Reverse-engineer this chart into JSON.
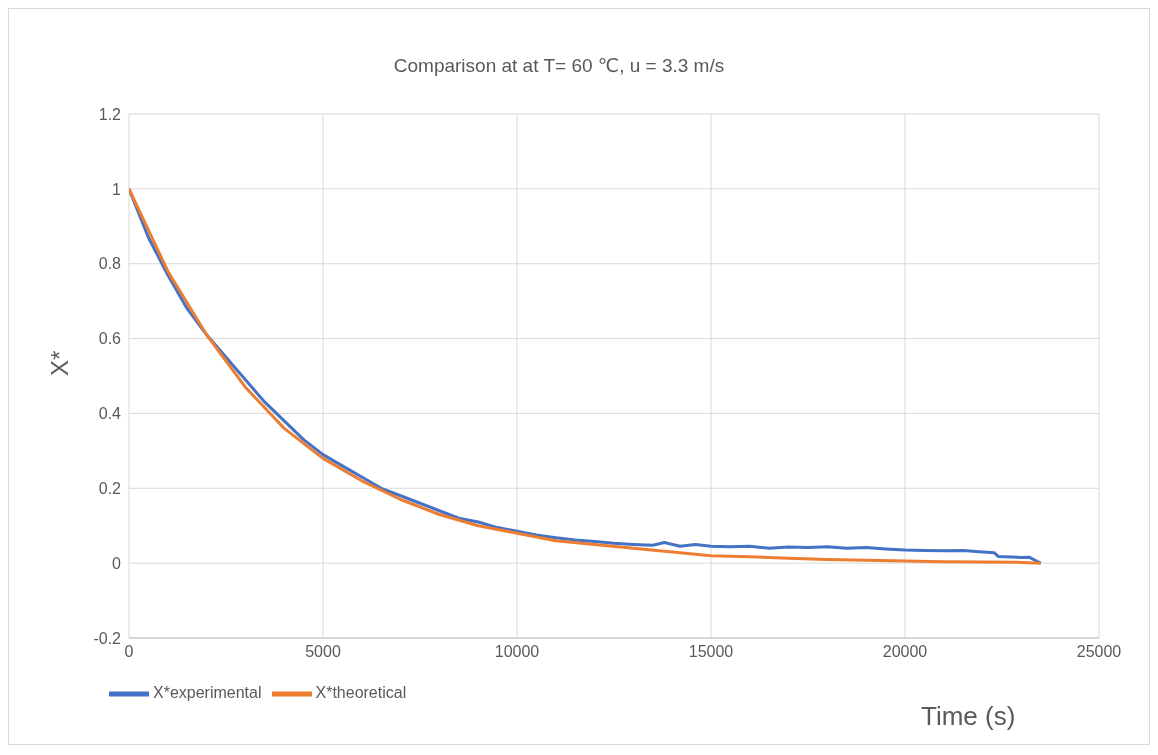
{
  "chart_data": {
    "type": "line",
    "title": "Comparison at at T= 60 ℃, u = 3.3 m/s",
    "xlabel": "Time (s)",
    "ylabel": "X*",
    "xlim": [
      0,
      25000
    ],
    "xticks": [
      0,
      5000,
      10000,
      15000,
      20000,
      25000
    ],
    "ylim": [
      -0.2,
      1.2
    ],
    "yticks": [
      -0.2,
      0,
      0.2,
      0.4,
      0.6,
      0.8,
      1,
      1.2
    ],
    "grid": true,
    "legend": "bottom",
    "marker": "none",
    "line_style": "solid",
    "series": [
      {
        "name": "X*experimental",
        "color": "#4472c4",
        "x": [
          0,
          500,
          1000,
          1500,
          2000,
          2500,
          3000,
          3500,
          4000,
          4500,
          5000,
          5500,
          6000,
          6500,
          7000,
          7500,
          8000,
          8500,
          9000,
          9500,
          10000,
          10500,
          11000,
          11500,
          12000,
          12500,
          13000,
          13500,
          13800,
          14200,
          14600,
          15000,
          15500,
          16000,
          16500,
          17000,
          17500,
          18000,
          18500,
          19000,
          19500,
          20000,
          20500,
          21000,
          21500,
          22000,
          22300,
          22400,
          23000,
          23200,
          23400,
          23500
        ],
        "values": [
          1,
          0.87,
          0.77,
          0.68,
          0.61,
          0.55,
          0.49,
          0.43,
          0.38,
          0.33,
          0.29,
          0.26,
          0.23,
          0.2,
          0.18,
          0.16,
          0.14,
          0.12,
          0.11,
          0.095,
          0.085,
          0.075,
          0.068,
          0.062,
          0.058,
          0.053,
          0.05,
          0.048,
          0.055,
          0.045,
          0.05,
          0.045,
          0.044,
          0.045,
          0.04,
          0.043,
          0.042,
          0.044,
          0.04,
          0.042,
          0.038,
          0.035,
          0.034,
          0.033,
          0.034,
          0.03,
          0.028,
          0.018,
          0.015,
          0.016,
          0.005,
          0
        ]
      },
      {
        "name": "X*theoretical",
        "color": "#ed7d31",
        "x": [
          0,
          1000,
          2000,
          3000,
          4000,
          5000,
          6000,
          7000,
          8000,
          9000,
          10000,
          11000,
          12000,
          13000,
          14000,
          15000,
          16000,
          17000,
          18000,
          19000,
          20000,
          21000,
          22000,
          23000,
          23500
        ],
        "values": [
          1,
          0.78,
          0.61,
          0.47,
          0.36,
          0.28,
          0.22,
          0.17,
          0.13,
          0.1,
          0.08,
          0.06,
          0.05,
          0.04,
          0.03,
          0.02,
          0.017,
          0.013,
          0.01,
          0.008,
          0.006,
          0.004,
          0.003,
          0.002,
          0
        ]
      }
    ]
  }
}
